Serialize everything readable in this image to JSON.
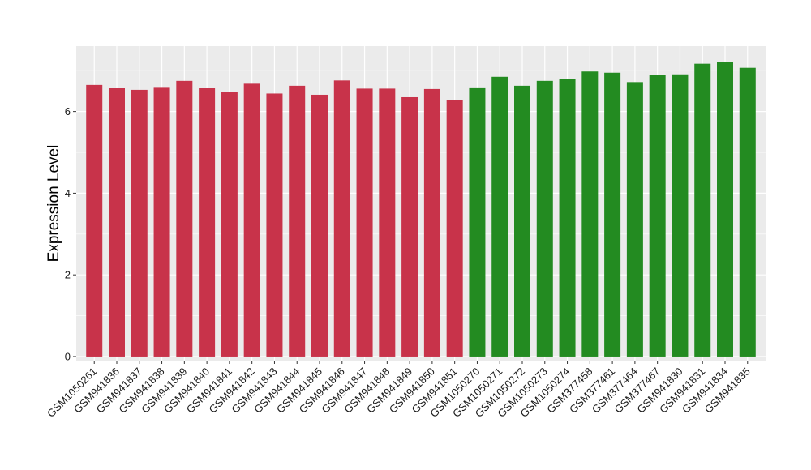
{
  "chart_data": {
    "type": "bar",
    "title": "",
    "xlabel": "",
    "ylabel": "Expression Level",
    "ylim": [
      -0.1,
      7.6
    ],
    "yticks": [
      0,
      2,
      4,
      6
    ],
    "grid": true,
    "legend": "none",
    "colors": {
      "group_a": "#C8334A",
      "group_b": "#238B21",
      "panel": "#EBEBEB",
      "grid": "#FFFFFF"
    },
    "categories": [
      "GSM1050261",
      "GSM941836",
      "GSM941837",
      "GSM941838",
      "GSM941839",
      "GSM941840",
      "GSM941841",
      "GSM941842",
      "GSM941843",
      "GSM941844",
      "GSM941845",
      "GSM941846",
      "GSM941847",
      "GSM941848",
      "GSM941849",
      "GSM941850",
      "GSM941851",
      "GSM1050270",
      "GSM1050271",
      "GSM1050272",
      "GSM1050273",
      "GSM1050274",
      "GSM377458",
      "GSM377461",
      "GSM377464",
      "GSM377467",
      "GSM941830",
      "GSM941831",
      "GSM941834",
      "GSM941835"
    ],
    "values": [
      6.65,
      6.58,
      6.53,
      6.6,
      6.75,
      6.58,
      6.47,
      6.68,
      6.44,
      6.63,
      6.41,
      6.76,
      6.56,
      6.56,
      6.35,
      6.55,
      6.28,
      6.59,
      6.85,
      6.63,
      6.75,
      6.79,
      6.98,
      6.95,
      6.72,
      6.9,
      6.91,
      7.17,
      7.21,
      7.07
    ],
    "groups": [
      "a",
      "a",
      "a",
      "a",
      "a",
      "a",
      "a",
      "a",
      "a",
      "a",
      "a",
      "a",
      "a",
      "a",
      "a",
      "a",
      "a",
      "b",
      "b",
      "b",
      "b",
      "b",
      "b",
      "b",
      "b",
      "b",
      "b",
      "b",
      "b",
      "b"
    ]
  }
}
